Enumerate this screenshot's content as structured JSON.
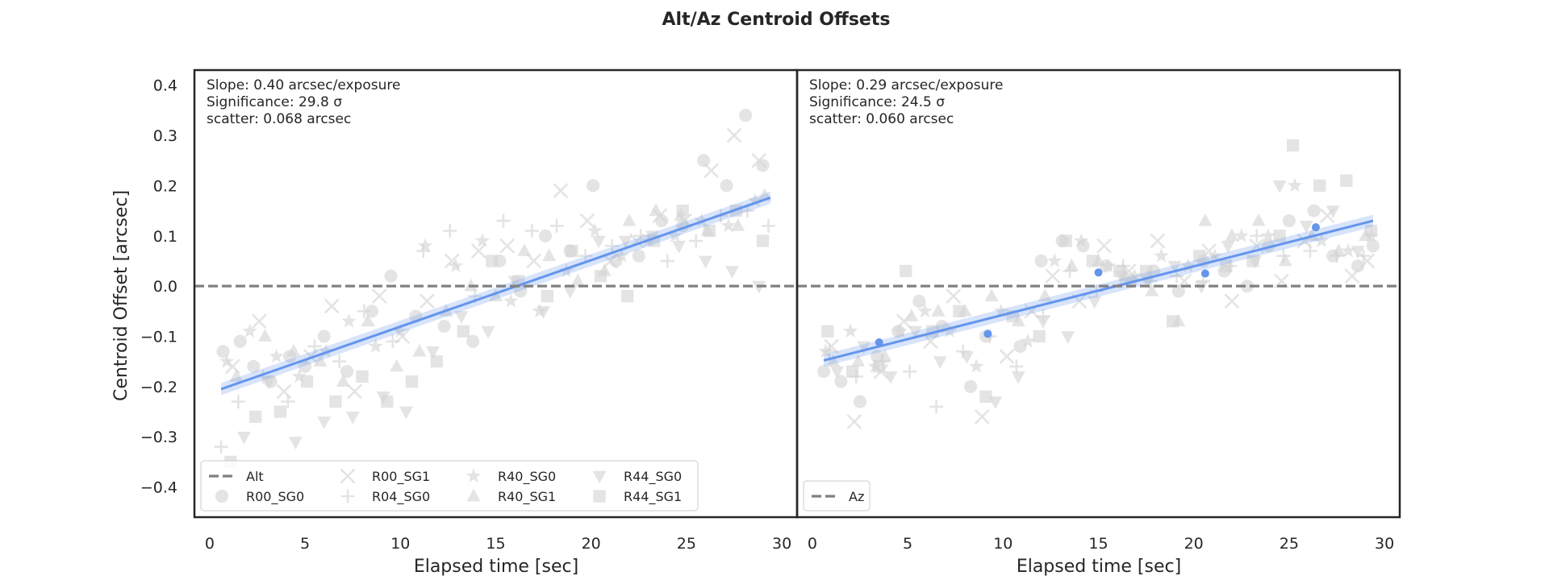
{
  "chart_data": {
    "type": "scatter",
    "title": "Alt/Az Centroid Offsets",
    "ylabel": "Centroid Offset [arcsec]",
    "ylim": [
      -0.46,
      0.43
    ],
    "yticks": [
      -0.4,
      -0.3,
      -0.2,
      -0.1,
      0.0,
      0.1,
      0.2,
      0.3,
      0.4
    ],
    "ytick_labels": [
      "−0.4",
      "−0.3",
      "−0.2",
      "−0.1",
      "0.0",
      "0.1",
      "0.2",
      "0.3",
      "0.4"
    ],
    "marker_color": "#d3d3d3",
    "highlight_color": "#6495ed",
    "zero_line_color": "#808080",
    "panels": [
      {
        "name": "alt",
        "xlabel": "Elapsed time [sec]",
        "xlim": [
          -0.8,
          30.8
        ],
        "xticks": [
          0,
          5,
          10,
          15,
          20,
          25,
          30
        ],
        "xtick_labels": [
          "0",
          "5",
          "10",
          "15",
          "20",
          "25",
          "30"
        ],
        "stats": [
          "Slope: 0.40 arcsec/exposure",
          "Significance: 29.8 σ",
          "scatter: 0.068 arcsec"
        ],
        "fit": {
          "x": [
            0.6,
            29.4
          ],
          "y": [
            -0.205,
            0.176
          ],
          "band": 0.012
        },
        "highlighted_points": [],
        "legend": {
          "location": "lower left",
          "columns": 4,
          "entries": [
            {
              "label": "Alt",
              "marker": "dashed-line"
            },
            {
              "label": "R00_SG0",
              "marker": "circle"
            },
            {
              "label": "R00_SG1",
              "marker": "x"
            },
            {
              "label": "R04_SG0",
              "marker": "plus"
            },
            {
              "label": "R40_SG0",
              "marker": "star"
            },
            {
              "label": "R40_SG1",
              "marker": "triangle-up"
            },
            {
              "label": "R44_SG0",
              "marker": "triangle-down"
            },
            {
              "label": "R44_SG1",
              "marker": "square"
            }
          ]
        }
      },
      {
        "name": "az",
        "xlabel": "Elapsed time [sec]",
        "xlim": [
          -0.8,
          30.8
        ],
        "xticks": [
          0,
          5,
          10,
          15,
          20,
          25,
          30
        ],
        "xtick_labels": [
          "0",
          "5",
          "10",
          "15",
          "20",
          "25",
          "30"
        ],
        "stats": [
          "Slope: 0.29 arcsec/exposure",
          "Significance: 24.5 σ",
          "scatter: 0.060 arcsec"
        ],
        "fit": {
          "x": [
            0.6,
            29.4
          ],
          "y": [
            -0.148,
            0.13
          ],
          "band": 0.012
        },
        "highlighted_points": [
          {
            "x": 3.5,
            "y": -0.112,
            "yerr": 0.006
          },
          {
            "x": 9.2,
            "y": -0.095,
            "yerr": 0.006
          },
          {
            "x": 15.0,
            "y": 0.027,
            "yerr": 0.006
          },
          {
            "x": 20.6,
            "y": 0.025,
            "yerr": 0.006
          },
          {
            "x": 26.4,
            "y": 0.117,
            "yerr": 0.006
          }
        ],
        "legend": {
          "location": "lower left",
          "columns": 1,
          "entries": [
            {
              "label": "Az",
              "marker": "dashed-line"
            }
          ]
        }
      }
    ],
    "series": [
      {
        "name": "R00_SG0",
        "marker": "circle",
        "alt": {
          "x": [
            0.7,
            1.6,
            2.3,
            3.2,
            4.2,
            5.0,
            6.0,
            7.2,
            8.5,
            9.5,
            10.8,
            12.3,
            13.8,
            15.2,
            16.3,
            17.6,
            18.9,
            20.1,
            21.3,
            22.5,
            23.7,
            24.8,
            25.9,
            27.1,
            28.1,
            29.0
          ],
          "y": [
            -0.13,
            -0.11,
            -0.16,
            -0.19,
            -0.14,
            -0.16,
            -0.1,
            -0.17,
            -0.05,
            0.02,
            -0.06,
            -0.08,
            -0.11,
            0.05,
            -0.01,
            0.1,
            0.07,
            0.2,
            0.05,
            0.06,
            0.13,
            0.12,
            0.25,
            0.2,
            0.34,
            0.24
          ]
        },
        "az": {
          "x": [
            0.6,
            1.5,
            2.5,
            3.4,
            4.5,
            5.6,
            6.8,
            8.3,
            9.1,
            10.9,
            12.0,
            13.1,
            14.2,
            15.4,
            16.7,
            17.9,
            19.2,
            20.5,
            21.6,
            22.8,
            23.9,
            25.0,
            26.3,
            27.3,
            28.6,
            29.4
          ],
          "y": [
            -0.17,
            -0.19,
            -0.23,
            -0.14,
            -0.09,
            -0.03,
            -0.08,
            -0.2,
            -0.1,
            -0.12,
            0.05,
            0.09,
            0.08,
            0.04,
            0.01,
            0.03,
            -0.01,
            0.05,
            0.03,
            0.0,
            0.08,
            0.13,
            0.15,
            0.06,
            0.04,
            0.08
          ]
        }
      },
      {
        "name": "R00_SG1",
        "marker": "x",
        "alt": {
          "x": [
            1.2,
            2.6,
            3.9,
            5.3,
            6.4,
            7.6,
            8.9,
            10.1,
            11.4,
            12.7,
            14.1,
            15.6,
            17.0,
            18.4,
            19.8,
            21.0,
            22.4,
            23.6,
            24.9,
            26.3,
            27.5,
            28.8
          ],
          "y": [
            -0.16,
            -0.07,
            -0.21,
            -0.14,
            -0.04,
            -0.21,
            -0.02,
            -0.1,
            -0.03,
            0.05,
            0.07,
            0.08,
            0.05,
            0.19,
            0.13,
            0.05,
            0.09,
            0.14,
            0.13,
            0.23,
            0.3,
            0.25
          ]
        },
        "az": {
          "x": [
            1.0,
            2.2,
            3.6,
            4.8,
            6.2,
            7.4,
            8.9,
            10.2,
            11.5,
            12.6,
            14.0,
            15.3,
            16.6,
            18.1,
            19.5,
            20.8,
            22.0,
            23.3,
            24.6,
            25.8,
            27.0,
            28.3,
            29.1
          ],
          "y": [
            -0.12,
            -0.27,
            -0.17,
            -0.07,
            -0.11,
            -0.02,
            -0.26,
            -0.14,
            -0.05,
            0.02,
            -0.03,
            0.08,
            0.03,
            0.09,
            0.01,
            0.07,
            -0.03,
            0.08,
            0.01,
            0.09,
            0.14,
            0.02,
            0.05
          ]
        }
      },
      {
        "name": "R04_SG0",
        "marker": "plus",
        "alt": {
          "x": [
            0.6,
            1.5,
            2.8,
            4.1,
            5.5,
            6.8,
            8.1,
            9.6,
            11.2,
            12.6,
            13.9,
            15.4,
            16.9,
            18.2,
            19.7,
            21.1,
            22.6,
            24.0,
            25.5,
            26.8,
            28.2,
            29.3
          ],
          "y": [
            -0.32,
            -0.23,
            -0.18,
            -0.23,
            -0.12,
            -0.15,
            -0.05,
            -0.11,
            0.07,
            0.11,
            -0.02,
            0.13,
            0.11,
            0.12,
            0.06,
            0.08,
            0.1,
            0.05,
            0.09,
            0.14,
            0.15,
            0.12
          ]
        },
        "az": {
          "x": [
            0.9,
            2.3,
            3.7,
            5.1,
            6.5,
            7.9,
            9.3,
            10.7,
            12.1,
            13.5,
            14.9,
            16.3,
            17.7,
            19.1,
            20.5,
            21.9,
            23.3,
            24.7,
            26.1,
            27.5,
            28.9
          ],
          "y": [
            -0.13,
            -0.18,
            -0.15,
            -0.17,
            -0.24,
            -0.13,
            -0.1,
            -0.16,
            -0.06,
            0.03,
            -0.01,
            0.04,
            0.01,
            0.02,
            0.01,
            0.04,
            0.1,
            0.06,
            0.07,
            0.06,
            0.06
          ]
        }
      },
      {
        "name": "R40_SG0",
        "marker": "star",
        "alt": {
          "x": [
            0.9,
            2.1,
            3.5,
            4.7,
            6.1,
            7.3,
            8.7,
            10.0,
            11.3,
            12.9,
            14.3,
            15.8,
            17.3,
            18.7,
            20.2,
            21.6,
            23.0,
            24.4,
            25.8,
            27.2,
            28.6
          ],
          "y": [
            -0.15,
            -0.09,
            -0.14,
            -0.18,
            -0.13,
            -0.07,
            -0.12,
            -0.09,
            0.08,
            0.04,
            0.09,
            -0.03,
            -0.05,
            0.03,
            0.11,
            0.06,
            0.09,
            0.1,
            0.13,
            0.12,
            0.17
          ]
        },
        "az": {
          "x": [
            0.7,
            2.0,
            3.3,
            4.6,
            5.9,
            7.2,
            8.6,
            9.9,
            11.3,
            12.7,
            14.1,
            15.5,
            16.9,
            18.3,
            19.7,
            21.1,
            22.5,
            23.9,
            25.3,
            26.7,
            28.1,
            29.3
          ],
          "y": [
            -0.13,
            -0.09,
            -0.16,
            -0.09,
            -0.05,
            -0.09,
            -0.16,
            -0.05,
            -0.11,
            0.05,
            0.09,
            0.04,
            0.02,
            0.06,
            0.04,
            0.06,
            0.1,
            0.1,
            0.2,
            0.09,
            0.07,
            0.1
          ]
        }
      },
      {
        "name": "R40_SG1",
        "marker": "triangle-up",
        "alt": {
          "x": [
            1.4,
            2.9,
            4.4,
            5.8,
            7.0,
            8.3,
            9.8,
            11.0,
            12.4,
            13.7,
            15.0,
            16.5,
            17.8,
            19.3,
            20.7,
            22.0,
            23.4,
            24.7,
            26.1,
            27.7,
            29.1
          ],
          "y": [
            -0.18,
            -0.1,
            -0.13,
            -0.15,
            -0.19,
            -0.07,
            -0.16,
            -0.13,
            -0.05,
            0.0,
            -0.02,
            0.07,
            0.06,
            0.01,
            0.03,
            0.13,
            0.15,
            0.14,
            0.11,
            0.12,
            0.18
          ]
        },
        "az": {
          "x": [
            1.1,
            2.4,
            3.8,
            5.2,
            6.6,
            8.0,
            9.4,
            10.8,
            12.2,
            13.6,
            15.0,
            16.4,
            17.8,
            19.2,
            20.6,
            22.0,
            23.4,
            24.8,
            26.2,
            27.6,
            29.0
          ],
          "y": [
            -0.15,
            -0.15,
            -0.14,
            -0.06,
            -0.05,
            -0.05,
            -0.02,
            -0.07,
            -0.02,
            0.04,
            0.05,
            0.02,
            -0.01,
            -0.07,
            0.13,
            0.1,
            0.13,
            0.05,
            0.1,
            0.07,
            0.1
          ]
        }
      },
      {
        "name": "R44_SG0",
        "marker": "triangle-down",
        "alt": {
          "x": [
            1.8,
            3.1,
            4.5,
            6.0,
            7.5,
            9.1,
            10.3,
            11.7,
            13.2,
            14.6,
            16.0,
            17.5,
            18.9,
            20.4,
            21.8,
            23.2,
            24.6,
            26.0,
            27.4,
            28.8
          ],
          "y": [
            -0.3,
            -0.19,
            -0.31,
            -0.27,
            -0.26,
            -0.22,
            -0.25,
            -0.13,
            -0.06,
            -0.09,
            0.01,
            -0.05,
            -0.01,
            0.09,
            0.09,
            0.1,
            0.08,
            0.05,
            0.03,
            0.0
          ]
        },
        "az": {
          "x": [
            1.3,
            2.7,
            4.1,
            5.4,
            6.7,
            8.1,
            9.6,
            10.8,
            12.1,
            13.4,
            14.8,
            16.2,
            17.6,
            19.0,
            20.4,
            21.8,
            23.2,
            24.5,
            25.9,
            27.3,
            28.6
          ],
          "y": [
            -0.17,
            -0.12,
            -0.18,
            -0.09,
            -0.15,
            -0.14,
            -0.23,
            -0.18,
            -0.07,
            -0.1,
            -0.03,
            0.02,
            0.01,
            0.04,
            0.0,
            0.08,
            0.05,
            0.2,
            0.12,
            0.15,
            0.07
          ]
        }
      },
      {
        "name": "R44_SG1",
        "marker": "square",
        "alt": {
          "x": [
            1.1,
            2.4,
            3.7,
            5.1,
            6.6,
            8.0,
            9.3,
            10.6,
            11.9,
            13.3,
            14.8,
            16.2,
            17.7,
            19.0,
            20.5,
            21.9,
            23.3,
            24.8,
            26.2,
            27.6,
            29.0
          ],
          "y": [
            -0.35,
            -0.26,
            -0.25,
            -0.19,
            -0.23,
            -0.18,
            -0.23,
            -0.19,
            -0.15,
            -0.09,
            0.05,
            0.01,
            -0.02,
            0.07,
            0.02,
            -0.02,
            0.09,
            0.15,
            0.11,
            0.15,
            0.09
          ]
        },
        "az": {
          "x": [
            0.8,
            2.1,
            3.5,
            4.9,
            6.3,
            7.7,
            9.1,
            10.5,
            11.9,
            13.3,
            14.7,
            16.1,
            17.5,
            18.9,
            20.3,
            21.7,
            23.1,
            24.5,
            25.2,
            26.6,
            28.0,
            29.3
          ],
          "y": [
            -0.09,
            -0.17,
            -0.16,
            0.03,
            -0.09,
            -0.05,
            -0.22,
            -0.06,
            -0.1,
            0.09,
            0.05,
            0.03,
            0.03,
            -0.07,
            0.06,
            0.04,
            0.05,
            0.1,
            0.28,
            0.2,
            0.21,
            0.11
          ]
        }
      }
    ]
  }
}
